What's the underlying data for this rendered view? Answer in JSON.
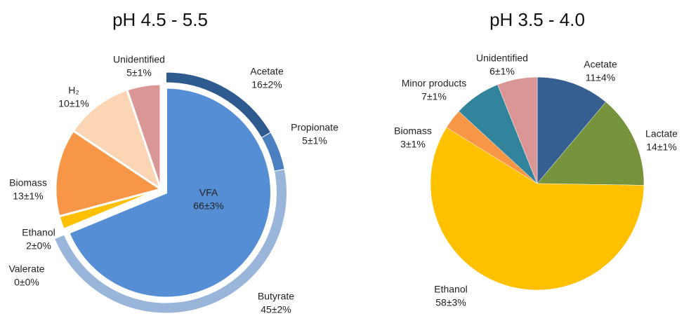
{
  "chart_data": [
    {
      "type": "pie",
      "title": "pH 4.5 - 5.5",
      "categories": [
        "VFA",
        "Ethanol",
        "Biomass",
        "H₂",
        "Unidentified"
      ],
      "values": [
        66,
        2,
        13,
        10,
        5
      ],
      "value_labels": [
        "66±3%",
        "2±0%",
        "13±1%",
        "10±1%",
        "5±1%"
      ],
      "colors": [
        "#558ed5",
        "#ffc000",
        "#f79646",
        "#fcd5b5",
        "#d99694"
      ],
      "ring": {
        "categories": [
          "Acetate",
          "Propionate",
          "Butyrate",
          "Valerate"
        ],
        "values": [
          16,
          5,
          45,
          0
        ],
        "value_labels": [
          "16±2%",
          "5±1%",
          "45±2%",
          "0±0%"
        ],
        "colors": [
          "#2f5a8f",
          "#4a7fc0",
          "#9ab5da",
          "#c6d6ec"
        ]
      }
    },
    {
      "type": "pie",
      "title": "pH 3.5 - 4.0",
      "categories": [
        "Acetate",
        "Lactate",
        "Ethanol",
        "Biomass",
        "Minor products",
        "Unidentified"
      ],
      "values": [
        11,
        14,
        58,
        3,
        7,
        6
      ],
      "value_labels": [
        "11±4%",
        "14±1%",
        "58±3%",
        "3±1%",
        "7±1%",
        "6±1%"
      ],
      "colors": [
        "#365f91",
        "#77933c",
        "#ffc000",
        "#f79646",
        "#31849b",
        "#d99694"
      ]
    }
  ]
}
